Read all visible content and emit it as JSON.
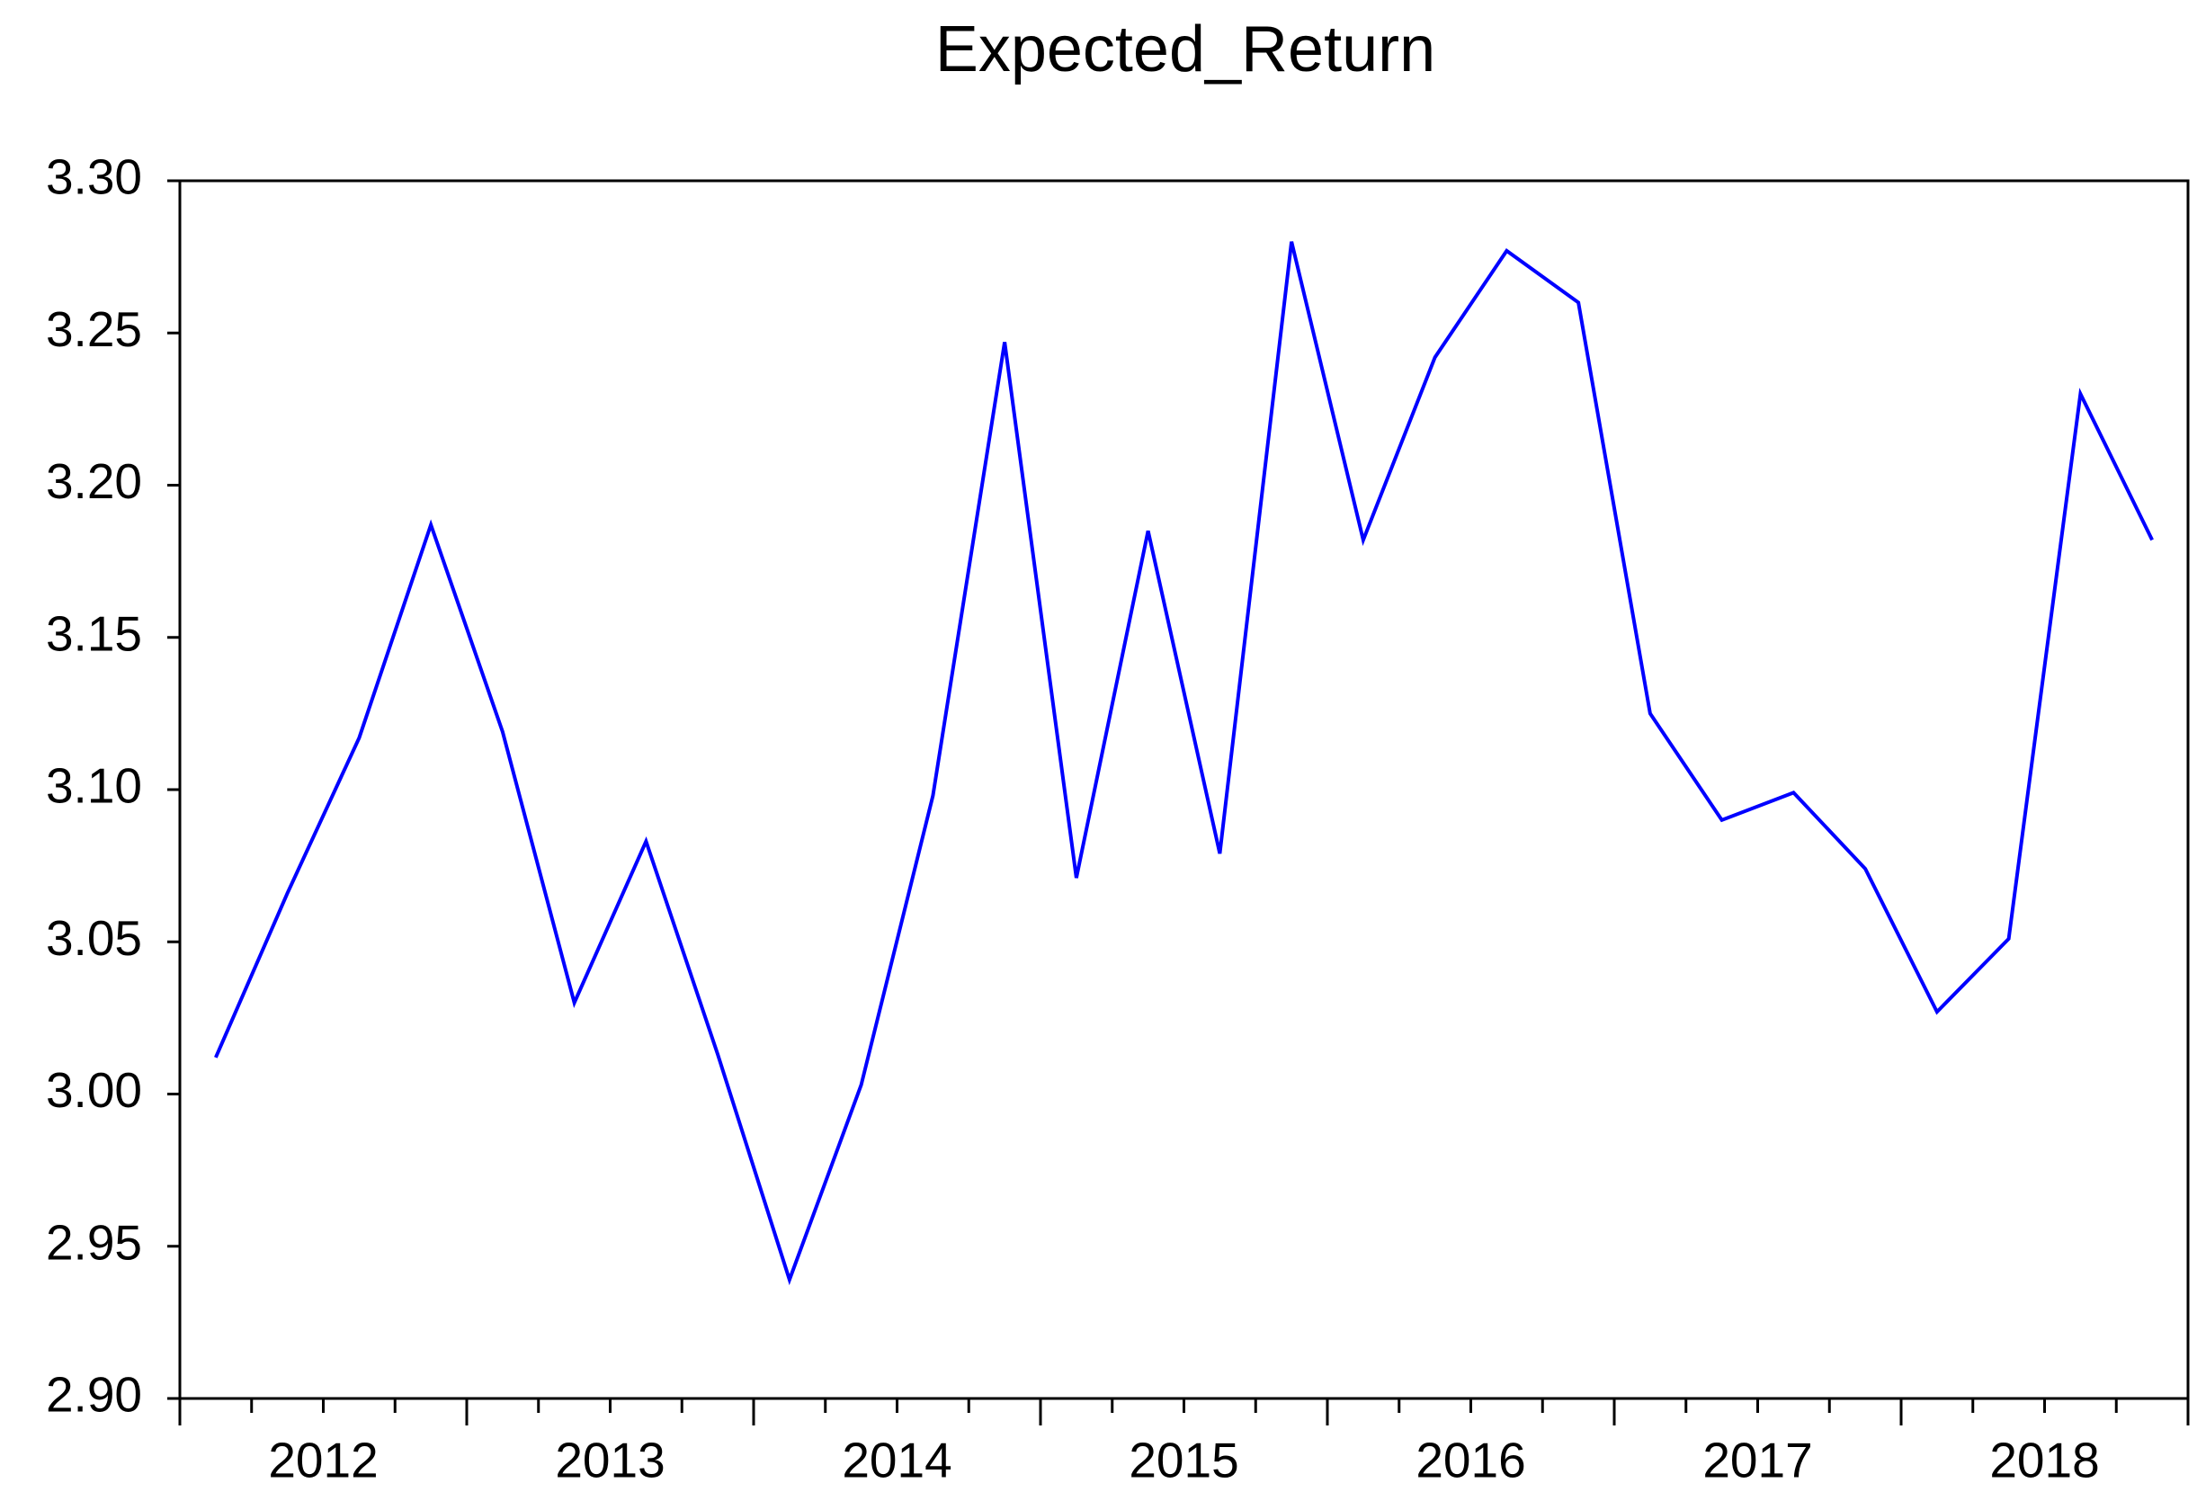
{
  "chart_data": {
    "type": "line",
    "title": "Expected_Return",
    "categories": [
      "2012",
      null,
      null,
      null,
      "2013",
      null,
      null,
      null,
      "2014",
      null,
      null,
      null,
      "2015",
      null,
      null,
      null,
      "2016",
      null,
      null,
      null,
      "2017",
      null,
      null,
      null,
      "2018",
      null,
      null,
      null
    ],
    "series": [
      {
        "name": "Expected_Return",
        "color": "#0000ff",
        "values": [
          3.012,
          3.066,
          3.117,
          3.187,
          3.119,
          3.03,
          3.083,
          3.013,
          2.939,
          3.003,
          3.098,
          3.247,
          3.071,
          3.185,
          3.079,
          3.28,
          3.182,
          3.242,
          3.277,
          3.26,
          3.125,
          3.09,
          3.099,
          3.074,
          3.027,
          3.051,
          3.23,
          3.182
        ]
      }
    ],
    "ylim": [
      2.9,
      3.3
    ],
    "yticks": [
      {
        "value": 2.9,
        "label": "2.90"
      },
      {
        "value": 2.95,
        "label": "2.95"
      },
      {
        "value": 3.0,
        "label": "3.00"
      },
      {
        "value": 3.05,
        "label": "3.05"
      },
      {
        "value": 3.1,
        "label": "3.10"
      },
      {
        "value": 3.15,
        "label": "3.15"
      },
      {
        "value": 3.2,
        "label": "3.20"
      },
      {
        "value": 3.25,
        "label": "3.25"
      },
      {
        "value": 3.3,
        "label": "3.30"
      }
    ],
    "grid": false
  }
}
